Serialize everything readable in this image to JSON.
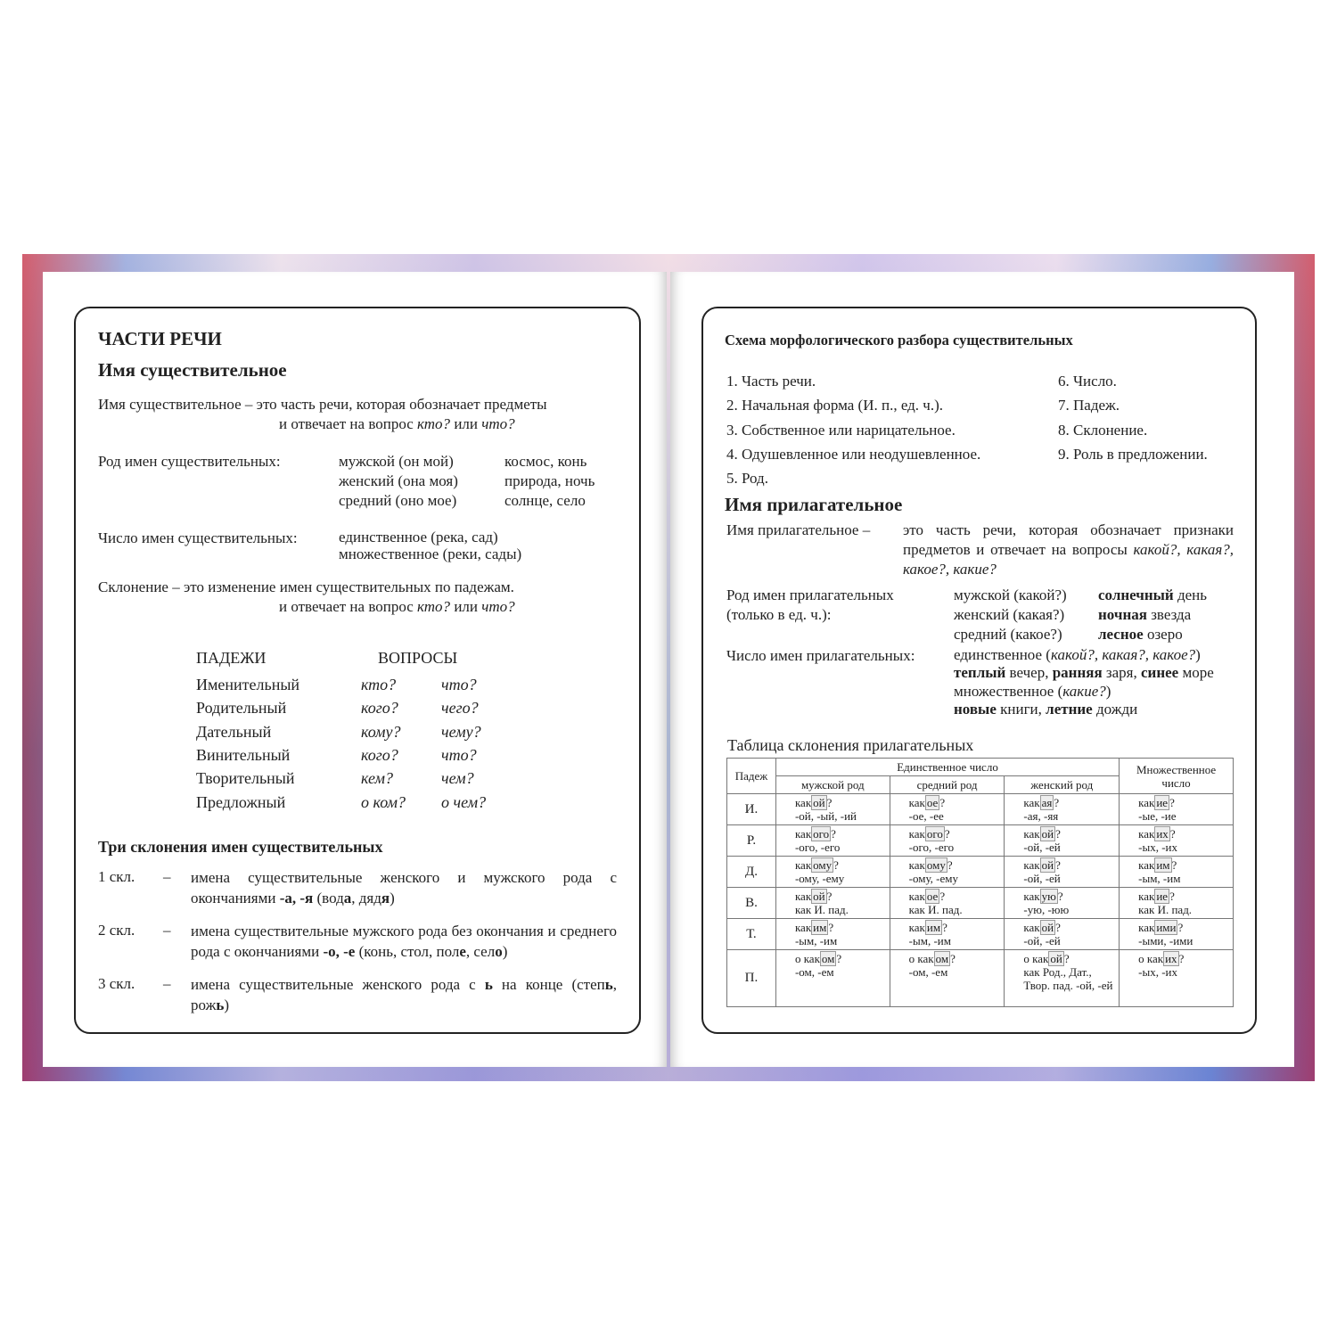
{
  "left": {
    "title": "ЧАСТИ РЕЧИ",
    "subtitle": "Имя существительное",
    "def1": "Имя существительное – это часть речи, которая обозначает предметы",
    "def2a": "и отвечает на вопрос ",
    "def2b": "кто?",
    "def2c": " или ",
    "def2d": "что?",
    "gender_label": "Род имен существительных:",
    "genders": [
      {
        "g": "мужской (он мой)",
        "ex": "космос, конь"
      },
      {
        "g": "женский (она моя)",
        "ex": "природа, ночь"
      },
      {
        "g": "средний (оно мое)",
        "ex": "солнце, село"
      }
    ],
    "number_label": "Число имен существительных:",
    "numbers": [
      "единственное (река, сад)",
      "множественное (реки, сады)"
    ],
    "decl1": "Склонение – это изменение имен существительных по падежам.",
    "decl2a": "и отвечает на вопрос ",
    "decl2b": "кто?",
    "decl2c": " или ",
    "decl2d": "что?",
    "cases_header": "ПАДЕЖИ",
    "questions_header": "ВОПРОСЫ",
    "cases": [
      [
        "Именительный",
        "кто?",
        "что?"
      ],
      [
        "Родительный",
        "кого?",
        "чего?"
      ],
      [
        "Дательный",
        "кому?",
        "чему?"
      ],
      [
        "Винительный",
        "кого?",
        "что?"
      ],
      [
        "Творительный",
        "кем?",
        "чем?"
      ],
      [
        "Предложный",
        "о ком?",
        "о чем?"
      ]
    ],
    "three_title": "Три склонения имен существительных",
    "d1": {
      "label": "1 скл.",
      "dash": "–",
      "a": "имена существительные женского и мужского рода с окончаниями ",
      "b": "-а, -я",
      "c": " (вод",
      "d": "а",
      ", ": "",
      "e": ", дяд",
      "f": "я",
      ")": ")"
    },
    "d2": {
      "label": "2 скл.",
      "dash": "–",
      "a": "имена существительные мужского рода без окончания и среднего рода с окончаниями ",
      "b": "-о, -е",
      "c": " (конь, стол, пол",
      "d": "е",
      "e": ", сел",
      "f": "о"
    },
    "d3": {
      "label": "3 скл.",
      "dash": "–",
      "a": "имена существительные женского рода с ",
      "b": "ь",
      "c": " на конце (степ",
      "d": "ь",
      "e": ", рож",
      "f": "ь"
    }
  },
  "right": {
    "scheme_title": "Схема морфологического разбора существительных",
    "scheme": [
      "1. Часть речи.",
      "2. Начальная форма (И. п., ед. ч.).",
      "3. Собственное или нарицательное.",
      "4. Одушевленное или неодушевленное.",
      "5. Род.",
      "6. Число.",
      "7. Падеж.",
      "8. Склонение.",
      "9. Роль в предложении."
    ],
    "adj_title": "Имя прилагательное",
    "adj_def_a": "Имя прилагательное – ",
    "adj_def_b": "это часть речи, которая обозначает признаки предметов и отвечает на вопросы ",
    "adj_def_c": "какой?, какая?, какое?, какие?",
    "gender_label1": "Род имен прилагательных",
    "gender_label2": "(только в ед. ч.):",
    "genders": [
      {
        "g": "мужской (какой?)",
        "bw": "солнечный",
        "w": " день"
      },
      {
        "g": "женский (какая?)",
        "bw": "ночная",
        "w": " звезда"
      },
      {
        "g": "средний (какое?)",
        "bw": "лесное",
        "w": " озеро"
      }
    ],
    "number_label": "Число имен прилагательных:",
    "sing_a": "единственное (",
    "sing_b": "какой?, какая?, какое?",
    "sing_c": ")",
    "sing_ex": [
      [
        "теплый",
        " вечер, "
      ],
      [
        "ранняя",
        " заря, "
      ],
      [
        "синее",
        " море"
      ]
    ],
    "plur_a": "множественное (",
    "plur_b": "какие?",
    "plur_c": ")",
    "plur_ex": [
      [
        "новые",
        " книги, "
      ],
      [
        "летние",
        " дожди"
      ]
    ],
    "table_title": "Таблица склонения прилагательных",
    "table": {
      "h_case": "Падеж",
      "h_sing": "Единственное число",
      "h_plur": "Множественное число",
      "h_m": "мужской род",
      "h_n": "средний род",
      "h_f": "женский род",
      "rows": [
        {
          "case": "И.",
          "cells": [
            [
              "как",
              "ой",
              "?",
              "-ой, -ый, -ий"
            ],
            [
              "как",
              "ое",
              "?",
              "-ое, -ее"
            ],
            [
              "как",
              "ая",
              "?",
              "-ая, -яя"
            ],
            [
              "как",
              "ие",
              "?",
              "-ые, -ие"
            ]
          ]
        },
        {
          "case": "Р.",
          "cells": [
            [
              "как",
              "ого",
              "?",
              "-ого, -его"
            ],
            [
              "как",
              "ого",
              "?",
              "-ого, -его"
            ],
            [
              "как",
              "ой",
              "?",
              "-ой, -ей"
            ],
            [
              "как",
              "их",
              "?",
              "-ых, -их"
            ]
          ]
        },
        {
          "case": "Д.",
          "cells": [
            [
              "как",
              "ому",
              "?",
              "-ому, -ему"
            ],
            [
              "как",
              "ому",
              "?",
              "-ому, -ему"
            ],
            [
              "как",
              "ой",
              "?",
              "-ой, -ей"
            ],
            [
              "как",
              "им",
              "?",
              "-ым, -им"
            ]
          ]
        },
        {
          "case": "В.",
          "cells": [
            [
              "как",
              "ой",
              "?",
              "как И. пад."
            ],
            [
              "как",
              "ое",
              "?",
              "как И. пад."
            ],
            [
              "как",
              "ую",
              "?",
              "-ую, -юю"
            ],
            [
              "как",
              "ие",
              "?",
              "как И. пад."
            ]
          ]
        },
        {
          "case": "Т.",
          "cells": [
            [
              "как",
              "им",
              "?",
              "-ым, -им"
            ],
            [
              "как",
              "им",
              "?",
              "-ым, -им"
            ],
            [
              "как",
              "ой",
              "?",
              "-ой, -ей"
            ],
            [
              "как",
              "ими",
              "?",
              "-ыми, -ими"
            ]
          ]
        },
        {
          "case": "П.",
          "cells": [
            [
              "о как",
              "ом",
              "?",
              "-ом, -ем"
            ],
            [
              "о как",
              "ом",
              "?",
              "-ом, -ем"
            ],
            [
              "о как",
              "ой",
              "?",
              "как Род., Дат., Твор. пад. -ой, -ей"
            ],
            [
              "о как",
              "их",
              "?",
              "-ых, -их"
            ]
          ]
        }
      ]
    }
  }
}
